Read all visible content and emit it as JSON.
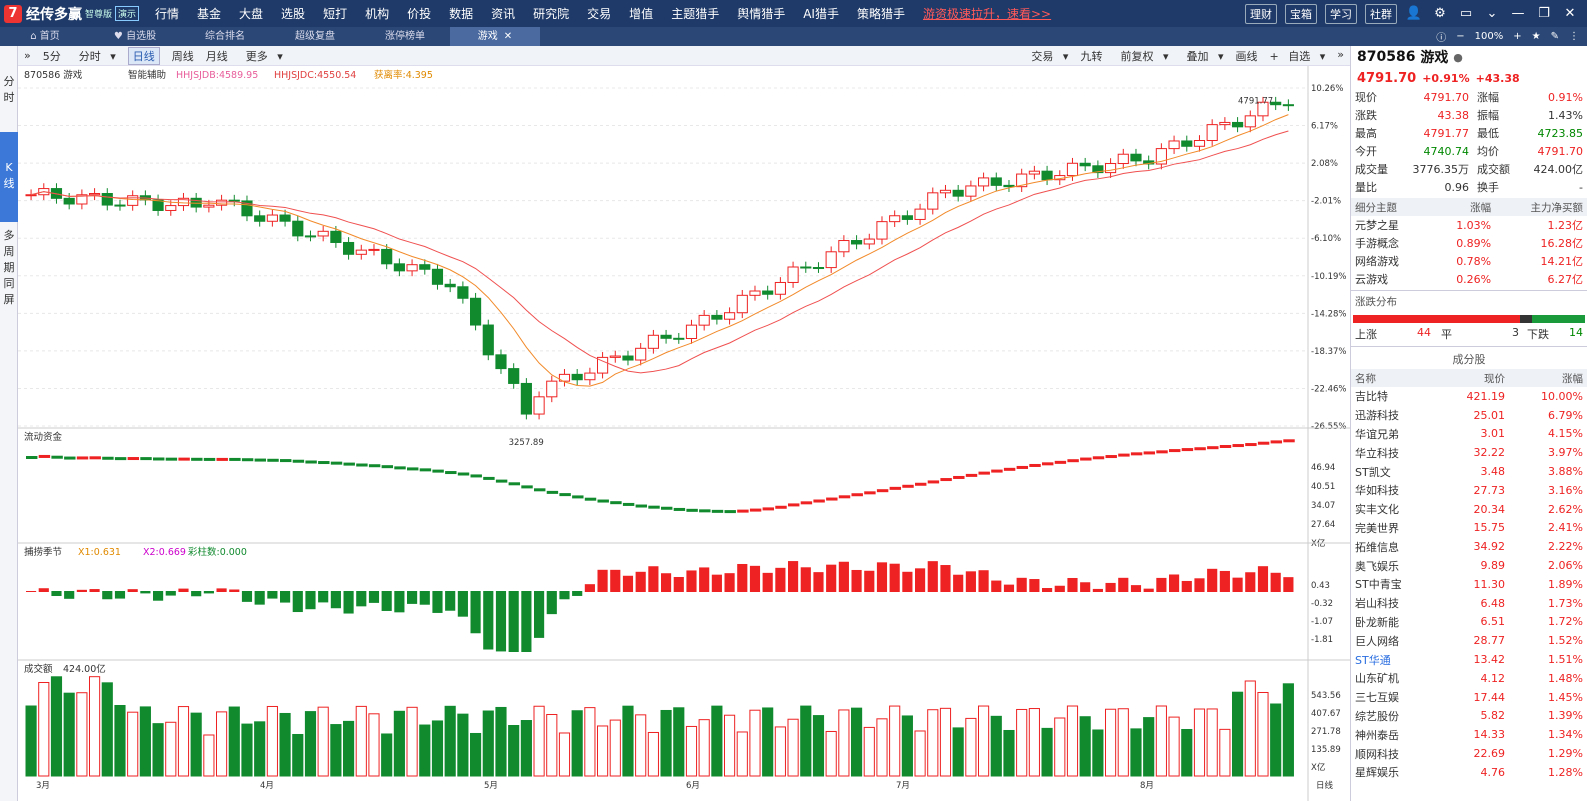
{
  "app": {
    "logo_mark": "7",
    "name": "经传多赢",
    "edition": "智尊版",
    "demo": "演示"
  },
  "menu": [
    "行情",
    "基金",
    "大盘",
    "选股",
    "短打",
    "机构",
    "价投",
    "数据",
    "资讯",
    "研究院",
    "交易",
    "增值",
    "主题猎手",
    "舆情猎手",
    "AI猎手",
    "策略猎手"
  ],
  "promo": "游资极速拉升，速看>>",
  "top_buttons": [
    "理财",
    "宝箱",
    "学习",
    "社群"
  ],
  "tabs": [
    "首页",
    "自选股",
    "综合排名",
    "超级复盘",
    "涨停榜单",
    "游戏"
  ],
  "active_tab": "游戏",
  "zoom": "100%",
  "leftnav": [
    "分时",
    "K线",
    "多周期同屏"
  ],
  "toolbar": {
    "periods": [
      "5分",
      "分时",
      "日线",
      "周线",
      "月线",
      "更多"
    ],
    "selected": "日线",
    "right": [
      "交易",
      "九转",
      "前复权",
      "叠加",
      "画线",
      "自选"
    ]
  },
  "chart_info": {
    "code_name": "870586 游戏",
    "assist": "智能辅助",
    "l1": "HHJSJDB:4589.95",
    "l2": "HHJSJDC:4550.54",
    "l3": "获离率:4.395"
  },
  "chart_data": {
    "type": "candlestick",
    "high_label": "4791.77",
    "low_label": "3257.89",
    "price_axis": [
      "10.26%",
      "6.17%",
      "2.08%",
      "-2.01%",
      "-6.10%",
      "-10.19%",
      "-14.28%",
      "-18.37%",
      "-22.46%",
      "-26.55%"
    ],
    "months": [
      "3月",
      "4月",
      "5月",
      "6月",
      "7月",
      "8月"
    ],
    "flow_title": "流动资金",
    "flow_axis": [
      "46.94",
      "40.51",
      "34.07",
      "27.64",
      "X亿"
    ],
    "season_title": "捕捞季节",
    "season_vals": [
      "X1:0.631",
      "X2:0.669",
      "彩柱数:0.000"
    ],
    "season_axis": [
      "0.43",
      "-0.32",
      "-1.07",
      "-1.81"
    ],
    "vol_title": "成交额",
    "vol_value": "424.00亿",
    "vol_axis": [
      "543.56",
      "407.67",
      "271.78",
      "135.89",
      "X亿"
    ],
    "x_label": "日线"
  },
  "stock": {
    "code": "870586",
    "name": "游戏",
    "price": "4791.70",
    "chg_pct": "+0.91%",
    "chg": "+43.38"
  },
  "quote": [
    [
      "现价",
      "4791.70",
      "涨幅",
      "0.91%"
    ],
    [
      "涨跌",
      "43.38",
      "振幅",
      "1.43%"
    ],
    [
      "最高",
      "4791.77",
      "最低",
      "4723.85"
    ],
    [
      "今开",
      "4740.74",
      "均价",
      "4791.70"
    ],
    [
      "成交量",
      "3776.35万",
      "成交额",
      "424.00亿"
    ],
    [
      "量比",
      "0.96",
      "换手",
      "-"
    ]
  ],
  "themes_head": [
    "细分主题",
    "涨幅",
    "主力净买额"
  ],
  "themes": [
    [
      "元梦之星",
      "1.03%",
      "1.23亿"
    ],
    [
      "手游概念",
      "0.89%",
      "16.28亿"
    ],
    [
      "网络游戏",
      "0.78%",
      "14.21亿"
    ],
    [
      "云游戏",
      "0.26%",
      "6.27亿"
    ]
  ],
  "dist": {
    "title": "涨跌分布",
    "up_label": "上涨",
    "up": "44",
    "flat_label": "平",
    "flat": "3",
    "down_label": "下跌",
    "down": "14"
  },
  "comp_title": "成分股",
  "comp_head": [
    "名称",
    "现价",
    "涨幅"
  ],
  "components": [
    [
      "吉比特",
      "421.19",
      "10.00%"
    ],
    [
      "迅游科技",
      "25.01",
      "6.79%"
    ],
    [
      "华谊兄弟",
      "3.01",
      "4.15%"
    ],
    [
      "华立科技",
      "32.22",
      "3.97%"
    ],
    [
      "ST凯文",
      "3.48",
      "3.88%"
    ],
    [
      "华如科技",
      "27.73",
      "3.16%"
    ],
    [
      "实丰文化",
      "20.34",
      "2.62%"
    ],
    [
      "完美世界",
      "15.75",
      "2.41%"
    ],
    [
      "拓维信息",
      "34.92",
      "2.22%"
    ],
    [
      "奥飞娱乐",
      "9.89",
      "2.06%"
    ],
    [
      "ST中青宝",
      "11.30",
      "1.89%"
    ],
    [
      "岩山科技",
      "6.48",
      "1.73%"
    ],
    [
      "卧龙新能",
      "6.51",
      "1.72%"
    ],
    [
      "巨人网络",
      "28.77",
      "1.52%"
    ],
    [
      "ST华通",
      "13.42",
      "1.51%"
    ],
    [
      "山东矿机",
      "4.12",
      "1.48%"
    ],
    [
      "三七互娱",
      "17.44",
      "1.45%"
    ],
    [
      "综艺股份",
      "5.82",
      "1.39%"
    ],
    [
      "神州泰岳",
      "14.33",
      "1.34%"
    ],
    [
      "顺网科技",
      "22.69",
      "1.29%"
    ],
    [
      "星辉娱乐",
      "4.76",
      "1.28%"
    ]
  ]
}
